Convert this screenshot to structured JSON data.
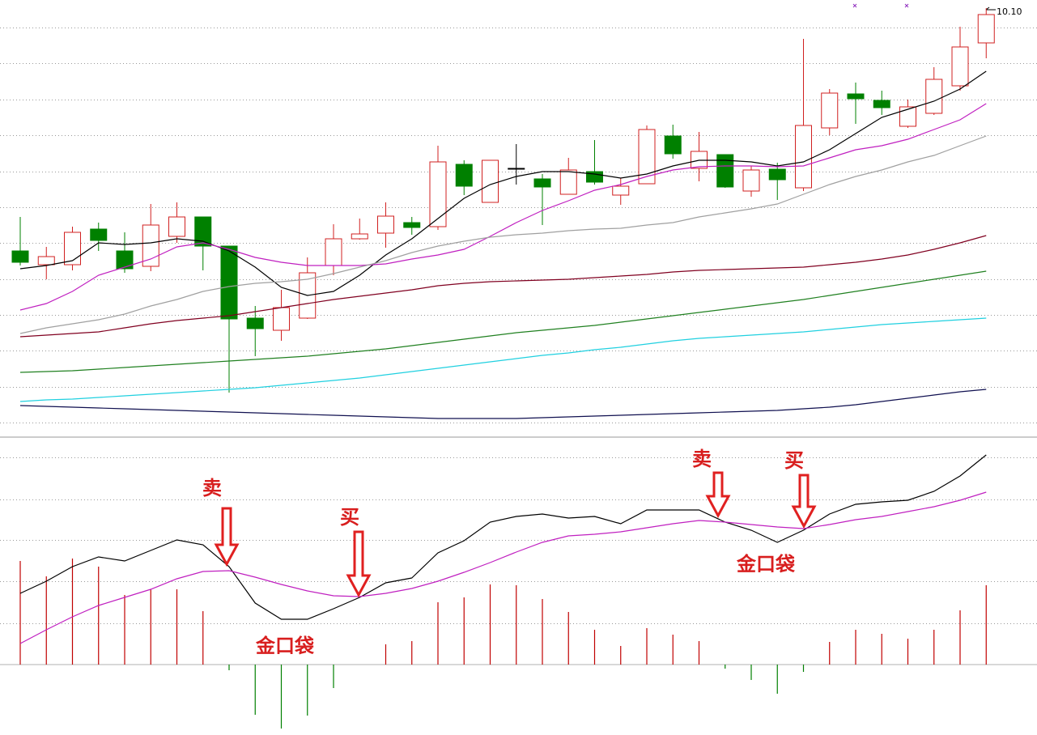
{
  "chart_data": [
    {
      "type": "candlestick",
      "ylim": [
        4.85,
        10.2
      ],
      "up_color": "#d02020",
      "down_color": "#008000",
      "open": [
        7.1,
        6.93,
        6.93,
        7.37,
        7.1,
        6.91,
        7.28,
        7.52,
        7.16,
        6.27,
        6.12,
        6.27,
        6.92,
        7.25,
        7.32,
        7.45,
        7.4,
        8.17,
        7.7,
        8.12,
        7.99,
        7.8,
        8.08,
        7.79,
        7.93,
        8.52,
        8.12,
        8.29,
        7.84,
        8.11,
        7.88,
        8.62,
        9.04,
        8.96,
        8.64,
        8.8,
        9.14,
        9.67
      ],
      "high": [
        7.52,
        7.15,
        7.4,
        7.45,
        7.33,
        7.68,
        7.7,
        7.52,
        7.16,
        6.42,
        6.62,
        7.02,
        7.43,
        7.5,
        7.7,
        7.52,
        8.4,
        8.22,
        8.22,
        8.42,
        8.05,
        8.25,
        8.47,
        8.0,
        8.65,
        8.66,
        8.57,
        8.29,
        8.15,
        8.19,
        9.72,
        9.1,
        9.18,
        9.08,
        8.97,
        9.37,
        9.87,
        10.1
      ],
      "low": [
        6.92,
        6.75,
        6.86,
        7.1,
        6.83,
        6.85,
        7.2,
        6.86,
        5.35,
        5.8,
        5.99,
        6.26,
        6.8,
        7.24,
        7.14,
        7.3,
        7.36,
        7.79,
        7.7,
        7.92,
        7.42,
        7.8,
        7.92,
        7.67,
        7.93,
        8.24,
        7.96,
        7.88,
        7.77,
        7.73,
        7.84,
        8.53,
        8.67,
        8.78,
        8.62,
        8.78,
        9.08,
        9.48
      ],
      "close": [
        6.96,
        7.03,
        7.33,
        7.23,
        6.88,
        7.42,
        7.52,
        7.16,
        6.26,
        6.14,
        6.4,
        6.83,
        7.25,
        7.31,
        7.53,
        7.39,
        8.2,
        7.9,
        8.22,
        8.12,
        7.89,
        8.1,
        7.95,
        7.9,
        8.6,
        8.3,
        8.33,
        7.89,
        8.1,
        7.98,
        8.65,
        9.05,
        8.98,
        8.87,
        8.88,
        9.22,
        9.62,
        10.02
      ],
      "high_label": "10.10",
      "series": [
        {
          "color": "#000000",
          "values": [
            6.88,
            6.92,
            6.98,
            7.2,
            7.18,
            7.2,
            7.25,
            7.22,
            7.1,
            6.9,
            6.65,
            6.55,
            6.6,
            6.8,
            7.05,
            7.25,
            7.5,
            7.75,
            7.92,
            8.02,
            8.08,
            8.08,
            8.05,
            8.0,
            8.05,
            8.15,
            8.22,
            8.22,
            8.2,
            8.15,
            8.2,
            8.35,
            8.55,
            8.75,
            8.85,
            8.95,
            9.1,
            9.32
          ]
        },
        {
          "color": "#c020c0",
          "values": [
            6.37,
            6.45,
            6.6,
            6.8,
            6.9,
            7.0,
            7.15,
            7.2,
            7.12,
            7.02,
            6.96,
            6.92,
            6.92,
            6.92,
            6.94,
            7.0,
            7.05,
            7.12,
            7.28,
            7.45,
            7.6,
            7.72,
            7.85,
            7.92,
            8.02,
            8.1,
            8.14,
            8.15,
            8.15,
            8.14,
            8.15,
            8.25,
            8.35,
            8.4,
            8.48,
            8.6,
            8.72,
            8.92
          ]
        },
        {
          "color": "#a0a0a0",
          "values": [
            6.08,
            6.15,
            6.2,
            6.25,
            6.32,
            6.42,
            6.5,
            6.6,
            6.66,
            6.7,
            6.72,
            6.75,
            6.82,
            6.9,
            6.98,
            7.08,
            7.16,
            7.22,
            7.27,
            7.3,
            7.32,
            7.35,
            7.37,
            7.38,
            7.42,
            7.45,
            7.52,
            7.57,
            7.62,
            7.68,
            7.8,
            7.92,
            8.02,
            8.1,
            8.2,
            8.28,
            8.4,
            8.52
          ]
        },
        {
          "color": "#800020",
          "values": [
            6.04,
            6.06,
            6.08,
            6.1,
            6.15,
            6.2,
            6.24,
            6.27,
            6.3,
            6.35,
            6.4,
            6.45,
            6.5,
            6.54,
            6.58,
            6.62,
            6.67,
            6.7,
            6.72,
            6.73,
            6.74,
            6.75,
            6.77,
            6.79,
            6.81,
            6.84,
            6.86,
            6.87,
            6.88,
            6.89,
            6.9,
            6.93,
            6.96,
            7.0,
            7.05,
            7.12,
            7.2,
            7.29
          ]
        },
        {
          "color": "#208020",
          "values": [
            5.6,
            5.61,
            5.62,
            5.64,
            5.66,
            5.68,
            5.7,
            5.72,
            5.74,
            5.76,
            5.78,
            5.8,
            5.83,
            5.86,
            5.89,
            5.93,
            5.97,
            6.01,
            6.05,
            6.09,
            6.12,
            6.15,
            6.18,
            6.22,
            6.26,
            6.3,
            6.34,
            6.38,
            6.42,
            6.46,
            6.5,
            6.55,
            6.6,
            6.65,
            6.7,
            6.75,
            6.8,
            6.85
          ]
        },
        {
          "color": "#20d0e0",
          "values": [
            5.24,
            5.26,
            5.27,
            5.29,
            5.31,
            5.33,
            5.35,
            5.37,
            5.39,
            5.41,
            5.44,
            5.47,
            5.5,
            5.53,
            5.57,
            5.61,
            5.65,
            5.69,
            5.73,
            5.77,
            5.81,
            5.84,
            5.88,
            5.91,
            5.95,
            5.99,
            6.02,
            6.04,
            6.06,
            6.08,
            6.1,
            6.13,
            6.16,
            6.19,
            6.21,
            6.23,
            6.25,
            6.27
          ]
        },
        {
          "color": "#101050",
          "values": [
            5.19,
            5.18,
            5.17,
            5.16,
            5.15,
            5.14,
            5.13,
            5.12,
            5.11,
            5.1,
            5.09,
            5.08,
            5.07,
            5.06,
            5.05,
            5.04,
            5.03,
            5.03,
            5.03,
            5.03,
            5.04,
            5.05,
            5.06,
            5.07,
            5.08,
            5.09,
            5.1,
            5.11,
            5.12,
            5.13,
            5.15,
            5.17,
            5.2,
            5.24,
            5.28,
            5.32,
            5.36,
            5.39
          ]
        }
      ]
    },
    {
      "type": "macd",
      "ylim": [
        -0.084,
        0.276
      ],
      "series": [
        {
          "color": "#000000",
          "values": [
            0.088,
            0.103,
            0.121,
            0.133,
            0.128,
            0.141,
            0.154,
            0.148,
            0.121,
            0.076,
            0.056,
            0.056,
            0.069,
            0.083,
            0.101,
            0.107,
            0.138,
            0.153,
            0.176,
            0.183,
            0.186,
            0.181,
            0.183,
            0.174,
            0.191,
            0.191,
            0.191,
            0.176,
            0.166,
            0.151,
            0.166,
            0.186,
            0.198,
            0.201,
            0.203,
            0.214,
            0.233,
            0.259
          ]
        },
        {
          "color": "#c020c0",
          "values": [
            0.026,
            0.043,
            0.059,
            0.073,
            0.083,
            0.093,
            0.106,
            0.115,
            0.116,
            0.108,
            0.099,
            0.091,
            0.085,
            0.084,
            0.088,
            0.094,
            0.103,
            0.114,
            0.126,
            0.139,
            0.151,
            0.159,
            0.161,
            0.164,
            0.169,
            0.174,
            0.178,
            0.176,
            0.173,
            0.17,
            0.168,
            0.173,
            0.179,
            0.183,
            0.189,
            0.195,
            0.203,
            0.213
          ]
        }
      ],
      "histogram": [
        0.128,
        0.109,
        0.131,
        0.121,
        0.086,
        0.093,
        0.093,
        0.066,
        -0.007,
        -0.062,
        -0.079,
        -0.063,
        -0.029,
        0,
        0.025,
        0.029,
        0.077,
        0.083,
        0.099,
        0.098,
        0.081,
        0.065,
        0.043,
        0.023,
        0.045,
        0.037,
        0.029,
        -0.005,
        -0.019,
        -0.036,
        -0.009,
        0.028,
        0.043,
        0.038,
        0.032,
        0.043,
        0.067,
        0.098
      ],
      "pos_color": "#c00000",
      "neg_color": "#008000",
      "annotations": [
        {
          "text": "卖"
        },
        {
          "text": "买"
        },
        {
          "text": "金口袋"
        },
        {
          "text": "卖"
        },
        {
          "text": "买"
        },
        {
          "text": "金口袋"
        }
      ]
    }
  ]
}
